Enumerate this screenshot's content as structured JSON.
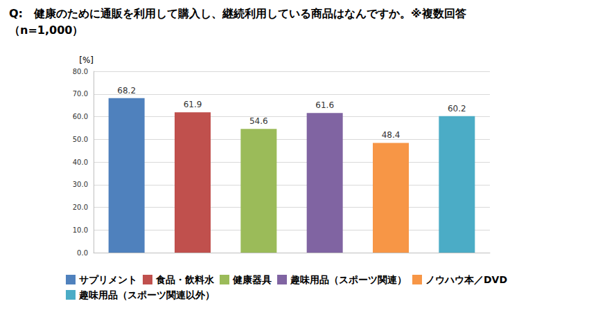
{
  "chart_data": {
    "type": "bar",
    "title": "Q:　健康のために通販を利用して購入し、継続利用している商品はなんですか。※複数回答",
    "subtitle": "（n=1,000）",
    "y_label": "[%]",
    "categories": [
      "サプリメント",
      "食品・飲料水",
      "健康器具",
      "趣味用品（スポーツ関連）",
      "ノウハウ本／DVD",
      "趣味用品（スポーツ関連以外）"
    ],
    "values": [
      68.2,
      61.9,
      54.6,
      61.6,
      48.4,
      60.2
    ],
    "colors": [
      "#4f81bd",
      "#c0504d",
      "#9bbb59",
      "#8064a2",
      "#f79646",
      "#4bacc6"
    ],
    "ylim": [
      0,
      80
    ],
    "yticks": [
      {
        "value": 0,
        "label": "0.0"
      },
      {
        "value": 10,
        "label": "10.0"
      },
      {
        "value": 20,
        "label": "20.0"
      },
      {
        "value": 30,
        "label": "30.0"
      },
      {
        "value": 40,
        "label": "40.0"
      },
      {
        "value": 50,
        "label": "50.0"
      },
      {
        "value": 60,
        "label": "60.0"
      },
      {
        "value": 70,
        "label": "70.0"
      },
      {
        "value": 80,
        "label": "80.0"
      }
    ],
    "grid": true,
    "legend": "bottom",
    "data_labels": true,
    "tick_labels": "y"
  }
}
